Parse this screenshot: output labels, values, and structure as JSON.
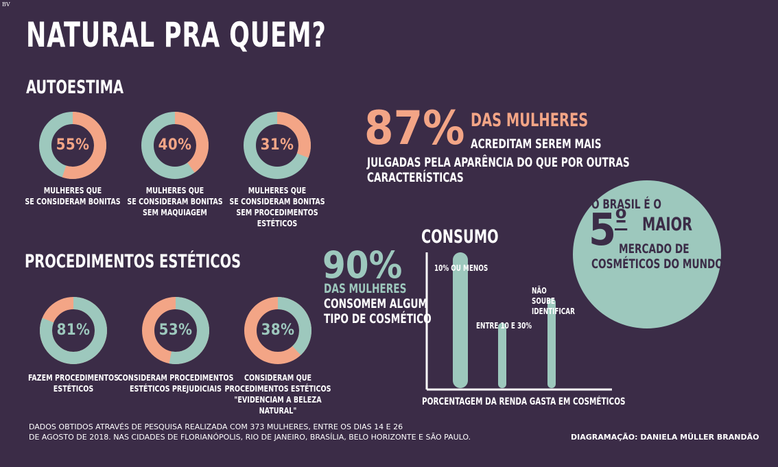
{
  "corner_mark": "BV",
  "title": "NATURAL PRA QUEM?",
  "sections": {
    "autoestima": "AUTOESTIMA",
    "procedimentos": "PROCEDIMENTOS ESTÉTICOS",
    "consumo": "CONSUMO"
  },
  "colors": {
    "background": "#3b2c47",
    "mint": "#9dc8bd",
    "salmon": "#f3a586"
  },
  "chart_data": [
    {
      "type": "pie",
      "group": "AUTOESTIMA",
      "slices": [
        {
          "value": 55,
          "label": "55%",
          "caption": [
            "MULHERES QUE",
            "SE CONSIDERAM BONITAS"
          ]
        },
        {
          "value": 40,
          "label": "40%",
          "caption": [
            "MULHERES QUE",
            "SE CONSIDERAM BONITAS",
            "SEM MAQUIAGEM"
          ]
        },
        {
          "value": 31,
          "label": "31%",
          "caption": [
            "MULHERES QUE",
            "SE CONSIDERAM BONITAS",
            "SEM PROCEDIMENTOS ESTÉTICOS"
          ]
        }
      ]
    },
    {
      "type": "pie",
      "group": "PROCEDIMENTOS ESTÉTICOS",
      "slices": [
        {
          "value": 81,
          "label": "81%",
          "caption": [
            "FAZEM PROCEDIMENTOS",
            "ESTÉTICOS"
          ]
        },
        {
          "value": 53,
          "label": "53%",
          "caption": [
            "CONSIDERAM PROCEDIMENTOS",
            "ESTÉTICOS PREJUDICIAIS"
          ]
        },
        {
          "value": 38,
          "label": "38%",
          "caption": [
            "CONSIDERAM QUE",
            "PROCEDIMENTOS ESTÉTICOS",
            "\"EVIDENCIAM A BELEZA NATURAL\""
          ]
        }
      ]
    },
    {
      "type": "bar",
      "title": "CONSUMO",
      "xlabel": "PORCENTAGEM DA RENDA GASTA EM COSMÉTICOS",
      "ylabel": "",
      "categories": [
        "10% OU MENOS",
        "ENTRE 10 E 30%",
        "NÃO SOUBE IDENTIFICAR"
      ],
      "values": [
        85,
        40,
        55
      ],
      "ylim": [
        0,
        100
      ]
    }
  ],
  "stat_87": {
    "number": "87%",
    "highlight": "DAS MULHERES",
    "line1": "ACREDITAM SEREM MAIS",
    "line2": "JULGADAS PELA APARÊNCIA DO QUE POR OUTRAS",
    "line3": "CARACTERÍSTICAS"
  },
  "stat_90": {
    "number": "90%",
    "highlight": "DAS MULHERES",
    "line1": "CONSOMEM ALGUM",
    "line2": "TIPO DE COSMÉTICO"
  },
  "brasil": {
    "line1": "O BRASIL É O",
    "rank": "5",
    "ordinal": "º",
    "maior": "MAIOR",
    "line2": "MERCADO DE",
    "line3": "COSMÉTICOS DO MUNDO"
  },
  "footer": {
    "line1": "DADOS OBTIDOS ATRAVÉS DE PESQUISA REALIZADA COM 373 MULHERES, ENTRE OS DIAS 14 E 26",
    "line2": "DE AGOSTO DE 2018. NAS CIDADES DE FLORIANÓPOLIS, RIO DE JANEIRO, BRASÍLIA, BELO HORIZONTE E SÃO PAULO.",
    "credit": "DIAGRAMAÇÃO: DANIELA MÜLLER BRANDÃO"
  }
}
